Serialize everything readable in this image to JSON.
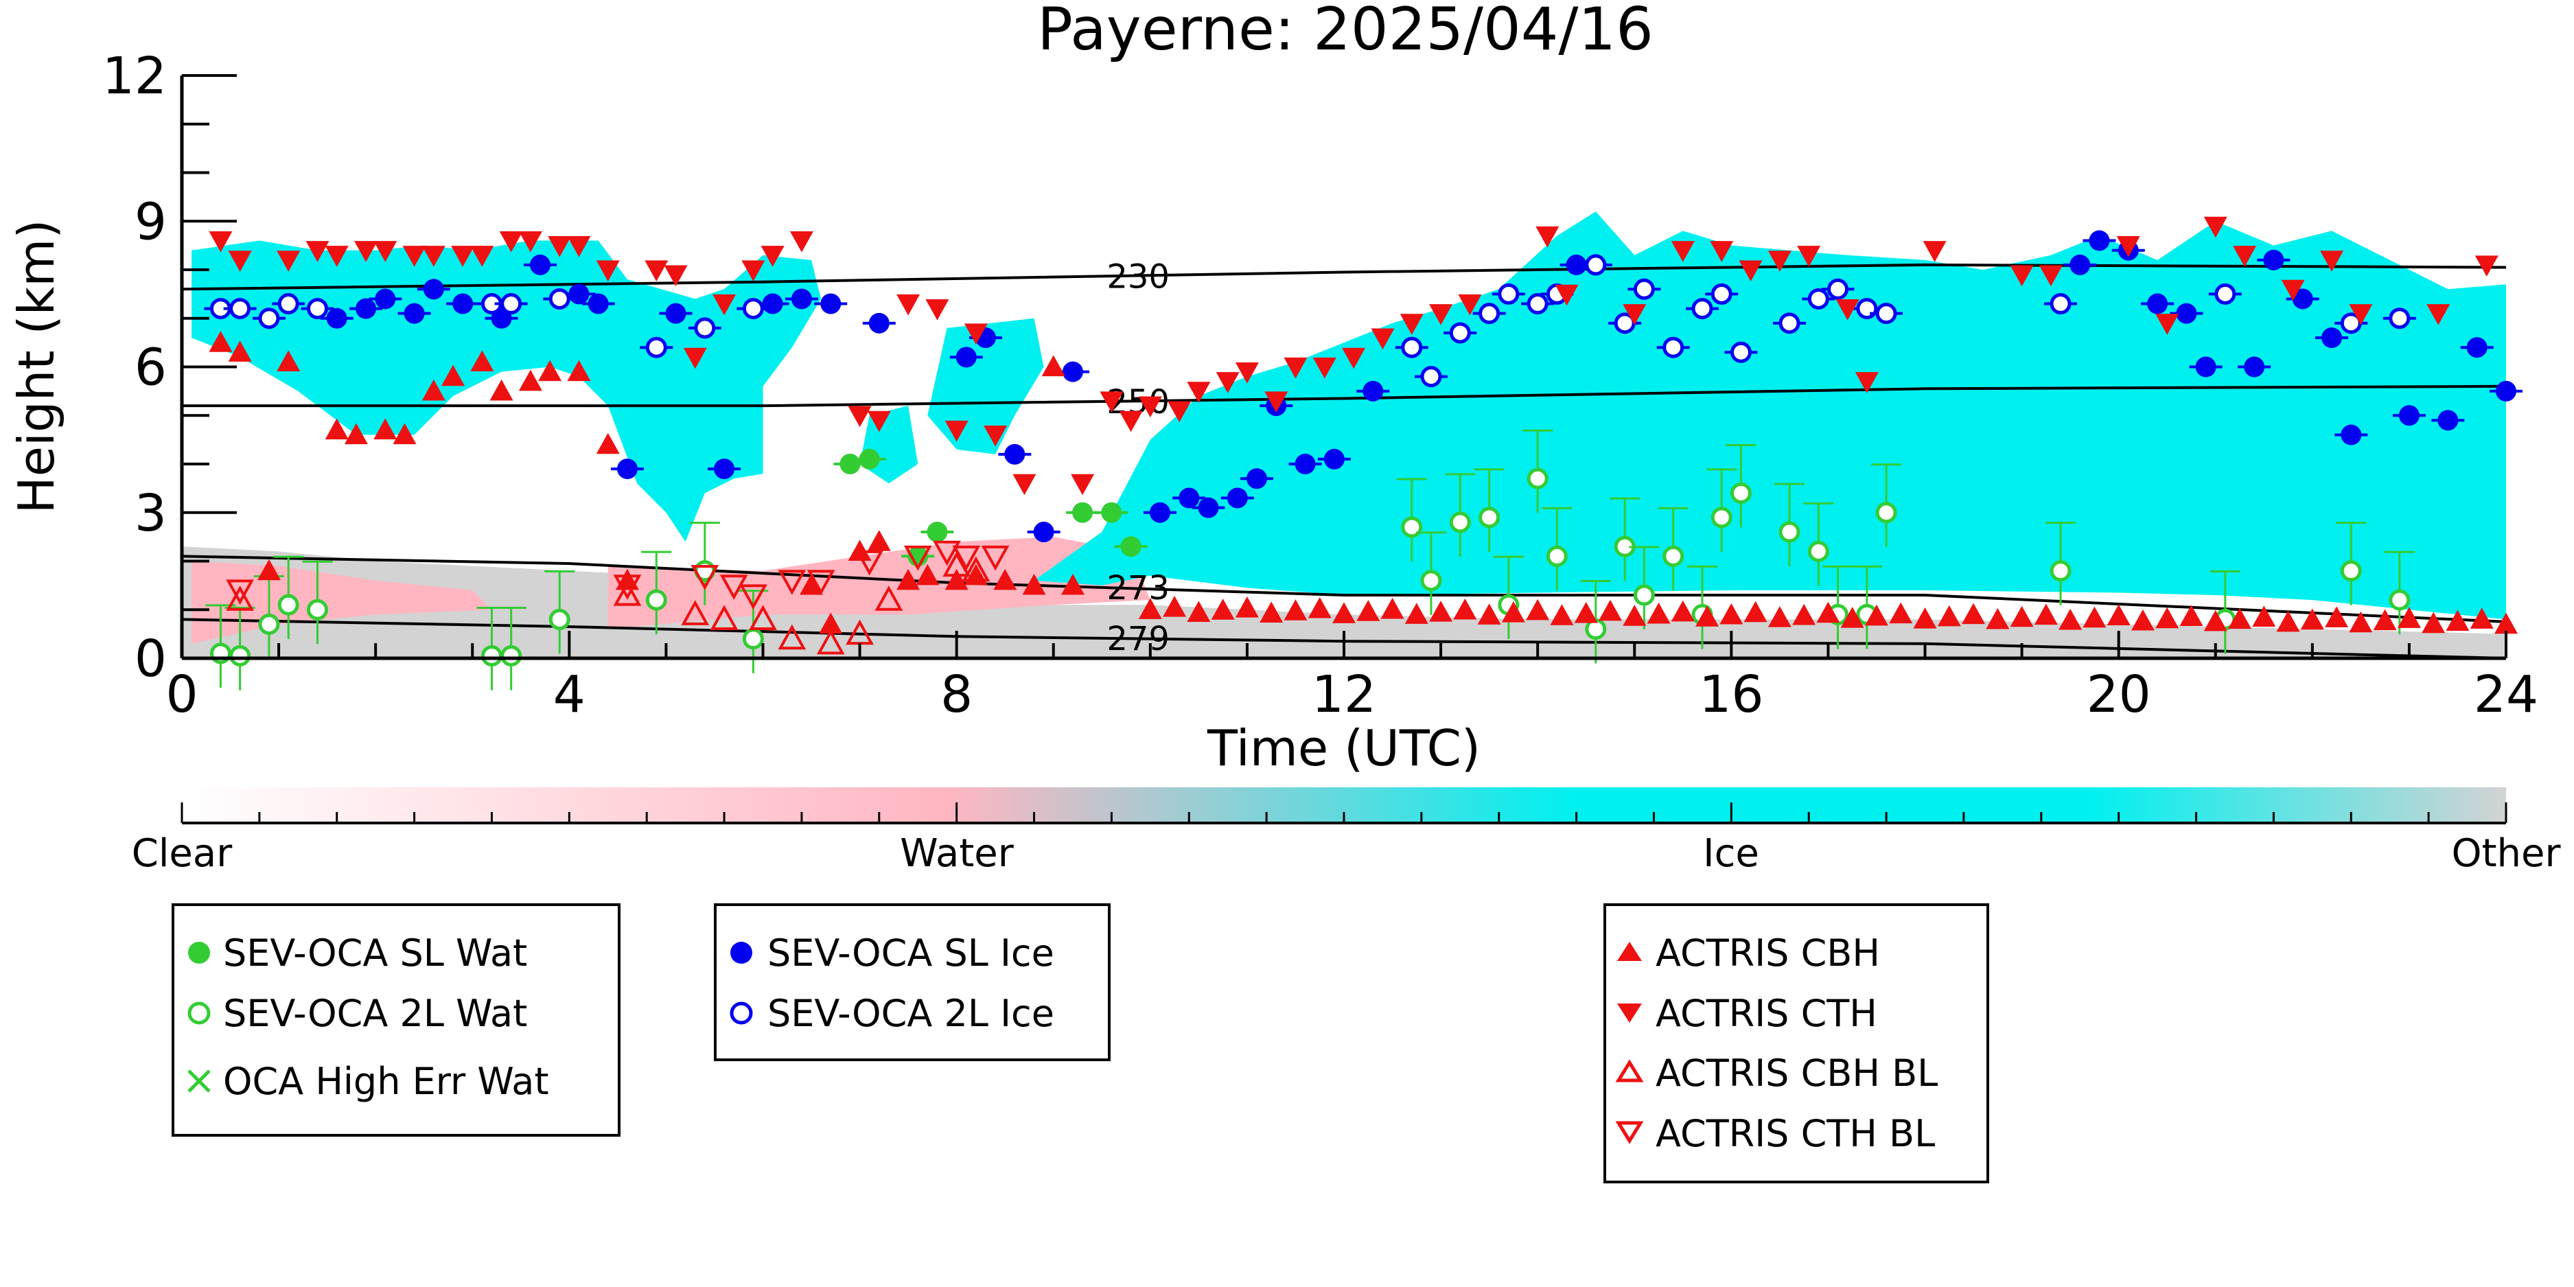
{
  "chart_data": {
    "type": "scatter",
    "title": "Payerne: 2025/04/16",
    "xlabel": "Time (UTC)",
    "ylabel": "Height (km)",
    "xlim": [
      0,
      24
    ],
    "ylim": [
      0,
      12
    ],
    "x_ticks": [
      "0",
      "4",
      "8",
      "12",
      "16",
      "20",
      "24"
    ],
    "y_ticks": [
      "0",
      "3",
      "6",
      "9",
      "12"
    ],
    "background_classes": {
      "colorbar_labels": [
        "Clear",
        "Water",
        "Ice",
        "Other"
      ],
      "colors": {
        "clear": "#ffffff",
        "water": "#ffb6c1",
        "ice": "#00f0f0",
        "other": "#d3d3d3"
      }
    },
    "isotherms": [
      {
        "label": "230",
        "x": [
          0,
          6,
          12,
          18,
          24
        ],
        "y": [
          7.6,
          7.75,
          7.95,
          8.1,
          8.05
        ]
      },
      {
        "label": "250",
        "x": [
          0,
          6,
          12,
          18,
          24
        ],
        "y": [
          5.2,
          5.2,
          5.35,
          5.55,
          5.6
        ]
      },
      {
        "label": "273",
        "x": [
          0,
          4,
          8,
          12,
          18,
          24
        ],
        "y": [
          2.1,
          1.95,
          1.55,
          1.3,
          1.3,
          0.75
        ]
      },
      {
        "label": "279",
        "x": [
          0,
          4,
          8,
          12,
          18,
          24
        ],
        "y": [
          0.8,
          0.65,
          0.45,
          0.35,
          0.3,
          0.0
        ]
      }
    ],
    "series": [
      {
        "name": "SEV-OCA SL Wat",
        "color": "#33cc33",
        "marker": "filled-circle",
        "x": [
          6.9,
          7.1,
          7.6,
          7.8,
          9.3,
          9.6,
          9.8
        ],
        "y": [
          4.0,
          4.1,
          2.1,
          2.6,
          3.0,
          3.0,
          2.3
        ]
      },
      {
        "name": "SEV-OCA 2L Wat",
        "color": "#33cc33",
        "marker": "open-circle",
        "x": [
          0.4,
          0.6,
          0.9,
          1.1,
          1.4,
          3.2,
          3.4,
          3.9,
          4.9,
          5.4,
          5.9,
          12.7,
          12.9,
          13.2,
          13.5,
          13.7,
          14.0,
          14.2,
          14.6,
          14.9,
          15.1,
          15.4,
          15.7,
          15.9,
          16.1,
          16.6,
          16.9,
          17.1,
          17.4,
          17.6,
          19.4,
          21.1,
          22.4,
          22.9
        ],
        "y": [
          0.1,
          0.05,
          0.7,
          1.1,
          1.0,
          0.05,
          0.05,
          0.8,
          1.2,
          1.8,
          0.4,
          2.7,
          1.6,
          2.8,
          2.9,
          1.1,
          3.7,
          2.1,
          0.6,
          2.3,
          1.3,
          2.1,
          0.9,
          2.9,
          3.4,
          2.6,
          2.2,
          0.9,
          0.9,
          3.0,
          1.8,
          0.8,
          1.8,
          1.2
        ]
      },
      {
        "name": "SEV-OCA SL Ice",
        "color": "#0000ee",
        "marker": "filled-circle",
        "x": [
          1.6,
          1.9,
          2.1,
          2.4,
          2.6,
          2.9,
          3.3,
          3.7,
          4.1,
          4.3,
          4.6,
          5.1,
          5.6,
          6.1,
          6.4,
          6.7,
          7.2,
          8.1,
          8.3,
          8.6,
          8.9,
          9.2,
          10.1,
          10.4,
          10.6,
          10.9,
          11.1,
          11.3,
          11.6,
          11.9,
          12.3,
          14.4,
          19.6,
          19.8,
          20.1,
          20.4,
          20.7,
          20.9,
          21.4,
          21.6,
          21.9,
          22.2,
          22.4,
          23.0,
          23.4,
          23.7,
          24.0
        ],
        "y": [
          7.0,
          7.2,
          7.4,
          7.1,
          7.6,
          7.3,
          7.0,
          8.1,
          7.5,
          7.3,
          3.9,
          7.1,
          3.9,
          7.3,
          7.4,
          7.3,
          6.9,
          6.2,
          6.6,
          4.2,
          2.6,
          5.9,
          3.0,
          3.3,
          3.1,
          3.3,
          3.7,
          5.2,
          4.0,
          4.1,
          5.5,
          8.1,
          8.1,
          8.6,
          8.4,
          7.3,
          7.1,
          6.0,
          6.0,
          8.2,
          7.4,
          6.6,
          4.6,
          5.0,
          4.9,
          6.4,
          5.5
        ]
      },
      {
        "name": "SEV-OCA 2L Ice",
        "color": "#0000ee",
        "marker": "open-circle",
        "x": [
          0.4,
          0.6,
          0.9,
          1.1,
          1.4,
          3.2,
          3.4,
          3.9,
          4.9,
          5.4,
          5.9,
          12.7,
          12.9,
          13.2,
          13.5,
          13.7,
          14.0,
          14.2,
          14.6,
          14.9,
          15.1,
          15.4,
          15.7,
          15.9,
          16.1,
          16.6,
          16.9,
          17.1,
          17.4,
          17.6,
          19.4,
          21.1,
          22.4,
          22.9
        ],
        "y": [
          7.2,
          7.2,
          7.0,
          7.3,
          7.2,
          7.3,
          7.3,
          7.4,
          6.4,
          6.8,
          7.2,
          6.4,
          5.8,
          6.7,
          7.1,
          7.5,
          7.3,
          7.5,
          8.1,
          6.9,
          7.6,
          6.4,
          7.2,
          7.5,
          6.3,
          6.9,
          7.4,
          7.6,
          7.2,
          7.1,
          7.3,
          7.5,
          6.9,
          7.0
        ]
      },
      {
        "name": "ACTRIS CBH",
        "color": "#ee1111",
        "marker": "filled-triangle-up",
        "x": [
          0.4,
          0.6,
          0.9,
          1.1,
          1.6,
          1.8,
          2.1,
          2.3,
          2.6,
          2.8,
          3.1,
          3.3,
          3.6,
          3.8,
          4.1,
          4.4,
          4.6,
          6.5,
          6.7,
          7.0,
          7.2,
          7.5,
          7.7,
          8.0,
          8.2,
          8.5,
          8.8,
          9.0,
          9.2
        ],
        "y": [
          6.5,
          6.3,
          1.8,
          6.1,
          4.7,
          4.6,
          4.7,
          4.6,
          5.5,
          5.8,
          6.1,
          5.5,
          5.7,
          5.9,
          5.9,
          4.4,
          1.6,
          1.5,
          0.7,
          2.2,
          2.4,
          1.6,
          1.7,
          1.6,
          1.7,
          1.6,
          1.5,
          6.0,
          1.5
        ]
      },
      {
        "name": "ACTRIS CTH",
        "color": "#ee1111",
        "marker": "filled-triangle-down",
        "x": [
          0.4,
          0.6,
          1.1,
          1.4,
          1.6,
          1.9,
          2.1,
          2.4,
          2.6,
          2.9,
          3.1,
          3.4,
          3.6,
          3.9,
          4.1,
          4.4,
          4.9,
          5.1,
          5.3,
          5.6,
          5.9,
          6.1,
          6.4,
          7.0,
          7.2,
          7.5,
          7.8,
          8.0,
          8.2,
          8.4,
          8.7,
          9.3,
          9.6,
          9.8,
          10.0,
          10.3,
          10.5,
          10.8,
          11.0,
          11.3,
          11.5,
          11.8,
          12.1,
          12.4,
          12.7,
          13.0,
          13.3,
          14.1,
          14.3,
          15.0,
          15.5,
          15.9,
          16.2,
          16.5,
          16.8,
          17.2,
          17.4,
          18.1,
          19.0,
          19.3,
          20.1,
          20.5,
          21.0,
          21.3,
          21.8,
          22.2,
          22.5,
          23.3,
          23.8
        ],
        "y": [
          8.6,
          8.2,
          8.2,
          8.4,
          8.3,
          8.4,
          8.4,
          8.3,
          8.3,
          8.3,
          8.3,
          8.6,
          8.6,
          8.5,
          8.5,
          8.0,
          8.0,
          7.9,
          6.2,
          7.3,
          8.0,
          8.3,
          8.6,
          5.0,
          4.9,
          7.3,
          7.2,
          4.7,
          6.7,
          4.6,
          3.6,
          3.6,
          5.3,
          4.9,
          5.2,
          5.1,
          5.5,
          5.7,
          5.9,
          5.3,
          6.0,
          6.0,
          6.2,
          6.6,
          6.9,
          7.1,
          7.3,
          8.7,
          7.5,
          7.1,
          8.4,
          8.4,
          8.0,
          8.2,
          8.3,
          7.2,
          5.7,
          8.4,
          7.9,
          7.9,
          8.5,
          6.9,
          8.9,
          8.3,
          7.6,
          8.2,
          7.1,
          7.1,
          8.1
        ]
      },
      {
        "name": "ACTRIS CBH BL",
        "color": "#ee1111",
        "marker": "open-triangle-up",
        "x": [
          0.6,
          4.6,
          5.3,
          5.6,
          6.0,
          6.3,
          6.7,
          7.0,
          7.3,
          8.0,
          8.2
        ],
        "y": [
          1.2,
          1.3,
          0.9,
          0.8,
          0.8,
          0.4,
          0.3,
          0.5,
          1.2,
          1.9,
          1.8
        ]
      },
      {
        "name": "ACTRIS CTH BL",
        "color": "#ee1111",
        "marker": "open-triangle-down",
        "x": [
          0.6,
          4.6,
          5.4,
          5.7,
          5.9,
          6.3,
          6.6,
          7.1,
          7.6,
          7.9,
          8.1,
          8.4
        ],
        "y": [
          1.4,
          1.5,
          1.7,
          1.5,
          1.3,
          1.6,
          1.6,
          2.0,
          2.1,
          2.2,
          2.1,
          2.1
        ]
      }
    ],
    "background_low_level_after_10h": "ACTRIS CBH row at approx 0.7-1.0 km from 10 to 24 UTC"
  },
  "legends": {
    "box1": [
      "SEV-OCA SL Wat",
      "SEV-OCA 2L Wat",
      "OCA High Err Wat"
    ],
    "box2": [
      "SEV-OCA SL Ice",
      "SEV-OCA 2L Ice"
    ],
    "box3": [
      "ACTRIS CBH",
      "ACTRIS CTH",
      "ACTRIS CBH BL",
      "ACTRIS CTH BL"
    ]
  }
}
